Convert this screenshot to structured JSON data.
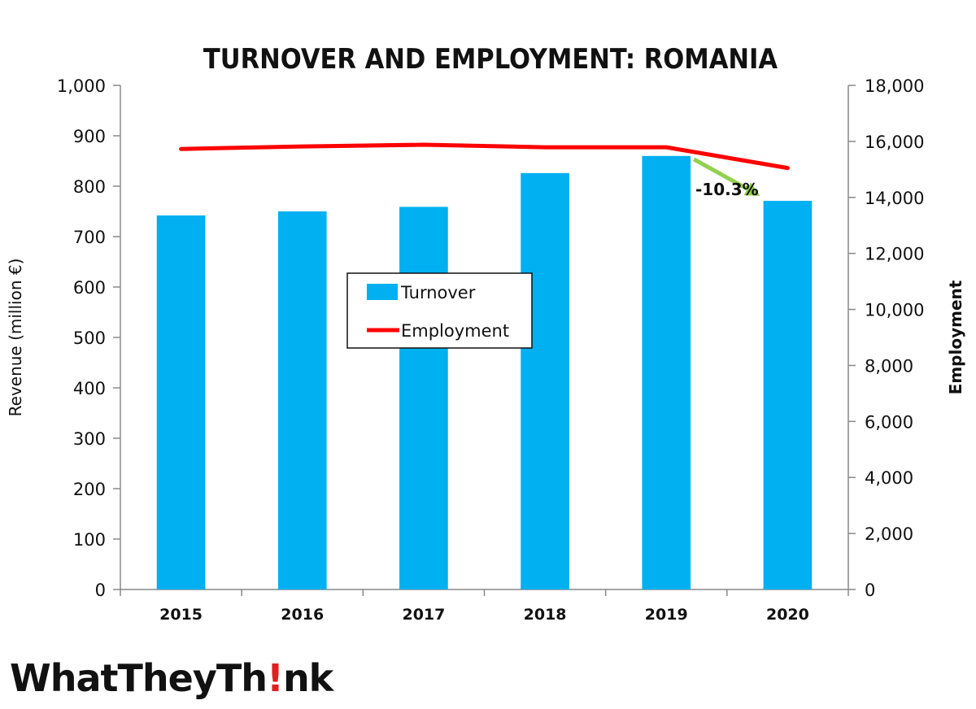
{
  "chart_data": {
    "type": "bar",
    "title": "TURNOVER AND EMPLOYMENT: ROMANIA",
    "categories": [
      "2015",
      "2016",
      "2017",
      "2018",
      "2019",
      "2020"
    ],
    "series": [
      {
        "name": "Turnover",
        "type": "bar",
        "axis": "left",
        "color": "#00B0F0",
        "values": [
          742,
          750,
          759,
          826,
          860,
          771
        ]
      },
      {
        "name": "Employment",
        "type": "line",
        "axis": "right",
        "color": "#FF0000",
        "values": [
          15730,
          15820,
          15880,
          15790,
          15790,
          15050
        ]
      }
    ],
    "ylabel": "Revenue (million €)",
    "y2label": "Employment",
    "ylim": [
      0,
      1000
    ],
    "y2lim": [
      0,
      18000
    ],
    "yticks": [
      "0",
      "100",
      "200",
      "300",
      "400",
      "500",
      "600",
      "700",
      "800",
      "900",
      "1,000"
    ],
    "y2ticks": [
      "0",
      "2,000",
      "4,000",
      "6,000",
      "8,000",
      "10,000",
      "12,000",
      "14,000",
      "16,000",
      "18,000"
    ],
    "grid": false,
    "legend_position": "center",
    "annotation": {
      "text": "-10.3%",
      "from_category": "2019",
      "to_category": "2020",
      "arrow_color": "#92D050"
    }
  },
  "logo": {
    "text_before": "WhatTheyTh",
    "text_after": "nk"
  }
}
